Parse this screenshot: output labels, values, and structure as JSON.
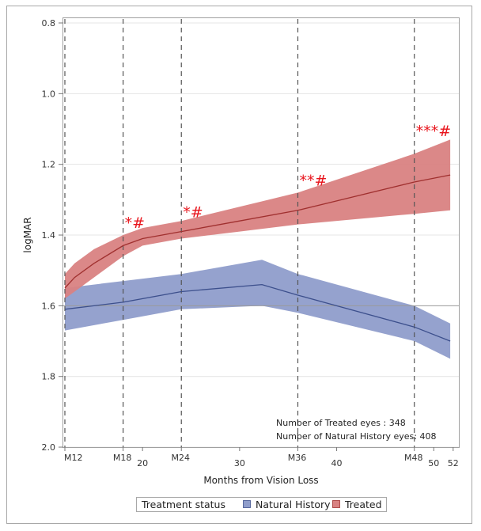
{
  "chart_data": {
    "type": "area",
    "title": "",
    "xlabel": "Months from Vision Loss",
    "ylabel": "logMAR",
    "xlim": [
      11.8,
      52.5
    ],
    "ylim": [
      0.8,
      2.0
    ],
    "y_inverted": true,
    "grid": true,
    "y_ticks": [
      "0.8",
      "1.0",
      "1.2",
      "1.4",
      "1.6",
      "1.8",
      "2.0"
    ],
    "x_ticks": [
      {
        "value": 12,
        "label": "M12"
      },
      {
        "value": 18,
        "label": "M18"
      },
      {
        "value": 20,
        "label": "20"
      },
      {
        "value": 24,
        "label": "M24"
      },
      {
        "value": 30,
        "label": "30"
      },
      {
        "value": 36,
        "label": "M36"
      },
      {
        "value": 40,
        "label": "40"
      },
      {
        "value": 48,
        "label": "M48"
      },
      {
        "value": 50,
        "label": "50"
      },
      {
        "value": 52,
        "label": "52"
      }
    ],
    "reference_vlines": [
      12,
      18,
      24,
      36,
      48
    ],
    "reference_hline": 1.6,
    "series": [
      {
        "name": "Natural History",
        "color_fill": "#8f9dcb",
        "color_line": "#3c4f8c",
        "x": [
          12,
          18,
          24,
          32.3,
          36,
          48,
          51.7
        ],
        "mean": [
          1.61,
          1.59,
          1.56,
          1.54,
          1.57,
          1.66,
          1.7
        ],
        "upper": [
          1.55,
          1.53,
          1.51,
          1.47,
          1.51,
          1.6,
          1.65
        ],
        "lower": [
          1.67,
          1.64,
          1.61,
          1.6,
          1.62,
          1.7,
          1.75
        ]
      },
      {
        "name": "Treated",
        "color_fill": "#d98282",
        "color_line": "#a0302f",
        "x": [
          12,
          13,
          15,
          18,
          20,
          24,
          30,
          36,
          48,
          51.7
        ],
        "mean": [
          1.55,
          1.52,
          1.48,
          1.43,
          1.41,
          1.39,
          1.36,
          1.33,
          1.25,
          1.23
        ],
        "upper": [
          1.51,
          1.48,
          1.44,
          1.4,
          1.38,
          1.36,
          1.32,
          1.28,
          1.17,
          1.13
        ],
        "lower": [
          1.58,
          1.56,
          1.52,
          1.46,
          1.43,
          1.41,
          1.39,
          1.37,
          1.34,
          1.33
        ]
      }
    ],
    "annotations": [
      {
        "text": "*#",
        "x": 18,
        "y": 1.38
      },
      {
        "text": "*#",
        "x": 24,
        "y": 1.35
      },
      {
        "text": "**#",
        "x": 36,
        "y": 1.26
      },
      {
        "text": "***#",
        "x": 48,
        "y": 1.12
      }
    ],
    "info_lines": [
      "Number of Treated eyes : 348",
      "Number of Natural History eyes: 408"
    ],
    "legend": {
      "title": "Treatment status",
      "position": "bottom",
      "items": [
        {
          "label": "Natural History",
          "color": "#8f9dcb"
        },
        {
          "label": "Treated",
          "color": "#d98282"
        }
      ]
    }
  }
}
